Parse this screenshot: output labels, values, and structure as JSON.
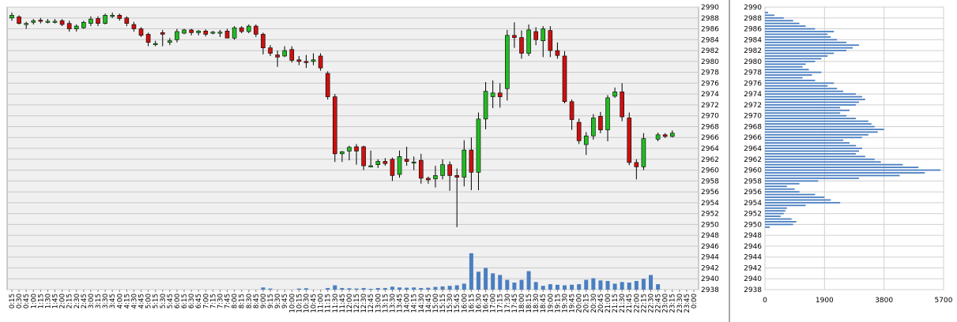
{
  "chart_data": [
    {
      "type": "candlestick",
      "title": "",
      "xlabel": "",
      "ylabel": "",
      "ylim": [
        2938,
        2990
      ],
      "y_ticks": [
        2938,
        2940,
        2942,
        2944,
        2946,
        2948,
        2950,
        2952,
        2954,
        2956,
        2958,
        2960,
        2962,
        2964,
        2966,
        2968,
        2970,
        2972,
        2974,
        2976,
        2978,
        2980,
        2982,
        2984,
        2986,
        2988,
        2990
      ],
      "grid": true,
      "legend": "none",
      "colors": {
        "up": "#22bb22",
        "down": "#cc1111",
        "volume": "#4a7fc1",
        "grid": "#c8c8c8",
        "plot_bg": "#f0f0f0"
      },
      "x_labels": [
        "0:15",
        "0:30",
        "0:45",
        "1:00",
        "1:15",
        "1:30",
        "1:45",
        "2:00",
        "2:15",
        "2:30",
        "2:45",
        "3:00",
        "3:15",
        "3:30",
        "3:45",
        "4:00",
        "4:15",
        "4:30",
        "4:45",
        "5:00",
        "5:15",
        "5:30",
        "5:45",
        "6:00",
        "6:15",
        "6:30",
        "6:45",
        "7:00",
        "7:15",
        "7:30",
        "7:45",
        "8:00",
        "8:15",
        "8:30",
        "8:45",
        "9:00",
        "9:15",
        "9:30",
        "9:45",
        "10:00",
        "10:15",
        "10:30",
        "10:45",
        "11:00",
        "11:15",
        "11:30",
        "11:45",
        "12:00",
        "12:15",
        "12:30",
        "12:45",
        "13:00",
        "13:15",
        "13:30",
        "13:45",
        "14:00",
        "14:15",
        "14:30",
        "14:45",
        "15:00",
        "15:15",
        "15:30",
        "15:45",
        "16:00",
        "16:15",
        "16:30",
        "16:45",
        "17:00",
        "17:15",
        "17:30",
        "17:45",
        "18:00",
        "18:15",
        "18:30",
        "18:45",
        "19:00",
        "19:15",
        "19:30",
        "19:45",
        "20:00",
        "20:15",
        "20:30",
        "20:45",
        "21:00",
        "21:15",
        "21:30",
        "21:45",
        "22:00",
        "22:15",
        "22:30",
        "22:45",
        "23:00",
        "23:15",
        "23:30",
        "23:45",
        "0:00"
      ],
      "candles": [
        {
          "x": "0:15",
          "o": 2988.0,
          "h": 2989.0,
          "l": 2987.5,
          "c": 2988.5
        },
        {
          "x": "0:30",
          "o": 2988.2,
          "h": 2988.5,
          "l": 2986.8,
          "c": 2987.0
        },
        {
          "x": "0:45",
          "o": 2987.0,
          "h": 2987.3,
          "l": 2986.0,
          "c": 2987.0
        },
        {
          "x": "1:00",
          "o": 2987.2,
          "h": 2987.8,
          "l": 2986.8,
          "c": 2987.5
        },
        {
          "x": "1:15",
          "o": 2987.6,
          "h": 2988.0,
          "l": 2987.0,
          "c": 2987.4
        },
        {
          "x": "1:30",
          "o": 2987.4,
          "h": 2987.8,
          "l": 2987.0,
          "c": 2987.4
        },
        {
          "x": "1:45",
          "o": 2987.3,
          "h": 2987.8,
          "l": 2987.0,
          "c": 2987.4
        },
        {
          "x": "2:00",
          "o": 2987.5,
          "h": 2987.8,
          "l": 2986.5,
          "c": 2986.8
        },
        {
          "x": "2:15",
          "o": 2987.0,
          "h": 2987.5,
          "l": 2985.5,
          "c": 2986.0
        },
        {
          "x": "2:30",
          "o": 2986.0,
          "h": 2986.8,
          "l": 2985.5,
          "c": 2986.5
        },
        {
          "x": "2:45",
          "o": 2986.2,
          "h": 2987.5,
          "l": 2986.0,
          "c": 2987.2
        },
        {
          "x": "3:00",
          "o": 2987.0,
          "h": 2988.3,
          "l": 2986.5,
          "c": 2987.8
        },
        {
          "x": "3:15",
          "o": 2987.9,
          "h": 2988.3,
          "l": 2986.5,
          "c": 2987.0
        },
        {
          "x": "3:30",
          "o": 2987.0,
          "h": 2988.8,
          "l": 2986.8,
          "c": 2988.5
        },
        {
          "x": "3:45",
          "o": 2988.5,
          "h": 2989.0,
          "l": 2988.0,
          "c": 2988.5
        },
        {
          "x": "4:00",
          "o": 2988.5,
          "h": 2988.8,
          "l": 2987.5,
          "c": 2987.9
        },
        {
          "x": "4:15",
          "o": 2988.0,
          "h": 2988.3,
          "l": 2986.5,
          "c": 2987.0
        },
        {
          "x": "4:30",
          "o": 2986.8,
          "h": 2987.3,
          "l": 2985.5,
          "c": 2986.0
        },
        {
          "x": "4:45",
          "o": 2986.0,
          "h": 2986.3,
          "l": 2984.5,
          "c": 2984.8
        },
        {
          "x": "5:00",
          "o": 2985.0,
          "h": 2985.3,
          "l": 2982.8,
          "c": 2983.5
        },
        {
          "x": "5:15",
          "o": 2983.3,
          "h": 2983.8,
          "l": 2982.8,
          "c": 2983.3
        },
        {
          "x": "5:30",
          "o": 2985.3,
          "h": 2985.8,
          "l": 2982.8,
          "c": 2985.0
        },
        {
          "x": "5:45",
          "o": 2983.5,
          "h": 2984.3,
          "l": 2983.0,
          "c": 2983.8
        },
        {
          "x": "6:00",
          "o": 2984.0,
          "h": 2986.0,
          "l": 2983.5,
          "c": 2985.5
        },
        {
          "x": "6:15",
          "o": 2985.2,
          "h": 2986.0,
          "l": 2985.0,
          "c": 2985.8
        },
        {
          "x": "6:30",
          "o": 2985.8,
          "h": 2986.0,
          "l": 2984.8,
          "c": 2985.3
        },
        {
          "x": "6:45",
          "o": 2985.3,
          "h": 2985.8,
          "l": 2984.8,
          "c": 2985.6
        },
        {
          "x": "7:00",
          "o": 2985.6,
          "h": 2985.9,
          "l": 2984.6,
          "c": 2985.0
        },
        {
          "x": "7:15",
          "o": 2985.2,
          "h": 2985.6,
          "l": 2985.0,
          "c": 2985.4
        },
        {
          "x": "7:30",
          "o": 2985.3,
          "h": 2985.8,
          "l": 2984.5,
          "c": 2985.4
        },
        {
          "x": "7:45",
          "o": 2985.6,
          "h": 2986.0,
          "l": 2984.5,
          "c": 2984.3
        },
        {
          "x": "8:00",
          "o": 2984.3,
          "h": 2986.5,
          "l": 2984.0,
          "c": 2986.2
        },
        {
          "x": "8:15",
          "o": 2986.2,
          "h": 2986.5,
          "l": 2985.2,
          "c": 2985.5
        },
        {
          "x": "8:30",
          "o": 2985.5,
          "h": 2986.8,
          "l": 2985.2,
          "c": 2986.5
        },
        {
          "x": "8:45",
          "o": 2986.5,
          "h": 2986.8,
          "l": 2984.5,
          "c": 2985.0
        },
        {
          "x": "9:00",
          "o": 2985.0,
          "h": 2985.3,
          "l": 2981.3,
          "c": 2982.5
        },
        {
          "x": "9:15",
          "o": 2982.5,
          "h": 2983.0,
          "l": 2981.0,
          "c": 2981.5
        },
        {
          "x": "9:30",
          "o": 2981.2,
          "h": 2982.0,
          "l": 2979.0,
          "c": 2980.8
        },
        {
          "x": "9:45",
          "o": 2981.0,
          "h": 2982.8,
          "l": 2980.8,
          "c": 2982.0
        },
        {
          "x": "10:00",
          "o": 2982.2,
          "h": 2982.8,
          "l": 2979.8,
          "c": 2980.2
        },
        {
          "x": "10:15",
          "o": 2980.3,
          "h": 2981.0,
          "l": 2979.3,
          "c": 2980.0
        },
        {
          "x": "10:30",
          "o": 2980.0,
          "h": 2981.2,
          "l": 2978.8,
          "c": 2979.8
        },
        {
          "x": "10:45",
          "o": 2980.0,
          "h": 2981.5,
          "l": 2979.3,
          "c": 2980.3
        },
        {
          "x": "11:00",
          "o": 2981.0,
          "h": 2981.5,
          "l": 2978.3,
          "c": 2978.8
        },
        {
          "x": "11:15",
          "o": 2977.8,
          "h": 2978.2,
          "l": 2973.0,
          "c": 2973.5
        },
        {
          "x": "11:30",
          "o": 2973.5,
          "h": 2974.0,
          "l": 2961.5,
          "c": 2963.0
        },
        {
          "x": "11:45",
          "o": 2963.0,
          "h": 2963.5,
          "l": 2961.5,
          "c": 2963.4
        },
        {
          "x": "12:00",
          "o": 2963.5,
          "h": 2964.5,
          "l": 2961.8,
          "c": 2964.2
        },
        {
          "x": "12:15",
          "o": 2964.3,
          "h": 2964.8,
          "l": 2961.0,
          "c": 2963.5
        },
        {
          "x": "12:30",
          "o": 2964.3,
          "h": 2964.5,
          "l": 2960.0,
          "c": 2960.8
        },
        {
          "x": "12:45",
          "o": 2960.8,
          "h": 2963.6,
          "l": 2960.5,
          "c": 2960.8
        },
        {
          "x": "13:00",
          "o": 2961.0,
          "h": 2962.0,
          "l": 2960.4,
          "c": 2961.6
        },
        {
          "x": "13:15",
          "o": 2961.6,
          "h": 2962.2,
          "l": 2960.8,
          "c": 2961.2
        },
        {
          "x": "13:30",
          "o": 2962.0,
          "h": 2962.3,
          "l": 2958.0,
          "c": 2959.0
        },
        {
          "x": "13:45",
          "o": 2959.2,
          "h": 2963.6,
          "l": 2958.6,
          "c": 2962.5
        },
        {
          "x": "14:00",
          "o": 2962.0,
          "h": 2964.3,
          "l": 2960.8,
          "c": 2961.6
        },
        {
          "x": "14:15",
          "o": 2961.5,
          "h": 2962.5,
          "l": 2960.0,
          "c": 2961.5
        },
        {
          "x": "14:30",
          "o": 2961.8,
          "h": 2963.0,
          "l": 2957.5,
          "c": 2958.5
        },
        {
          "x": "14:45",
          "o": 2958.5,
          "h": 2958.8,
          "l": 2957.5,
          "c": 2958.2
        },
        {
          "x": "15:00",
          "o": 2958.4,
          "h": 2960.8,
          "l": 2956.8,
          "c": 2959.0
        },
        {
          "x": "15:15",
          "o": 2959.0,
          "h": 2962.0,
          "l": 2958.3,
          "c": 2961.0
        },
        {
          "x": "15:30",
          "o": 2961.0,
          "h": 2961.6,
          "l": 2956.2,
          "c": 2959.0
        },
        {
          "x": "15:45",
          "o": 2959.0,
          "h": 2960.3,
          "l": 2949.5,
          "c": 2958.7
        },
        {
          "x": "16:00",
          "o": 2958.7,
          "h": 2965.5,
          "l": 2957.0,
          "c": 2963.7
        },
        {
          "x": "16:15",
          "o": 2963.7,
          "h": 2966.0,
          "l": 2956.3,
          "c": 2959.6
        },
        {
          "x": "16:30",
          "o": 2959.6,
          "h": 2970.6,
          "l": 2956.3,
          "c": 2969.4
        },
        {
          "x": "16:45",
          "o": 2969.4,
          "h": 2976.2,
          "l": 2967.5,
          "c": 2974.5
        },
        {
          "x": "17:00",
          "o": 2973.5,
          "h": 2976.5,
          "l": 2971.4,
          "c": 2974.2
        },
        {
          "x": "17:15",
          "o": 2974.2,
          "h": 2976.0,
          "l": 2971.5,
          "c": 2973.5
        },
        {
          "x": "17:30",
          "o": 2975.0,
          "h": 2985.8,
          "l": 2972.8,
          "c": 2984.8
        },
        {
          "x": "17:45",
          "o": 2984.8,
          "h": 2987.2,
          "l": 2982.5,
          "c": 2984.4
        },
        {
          "x": "18:00",
          "o": 2984.4,
          "h": 2985.7,
          "l": 2980.5,
          "c": 2981.5
        },
        {
          "x": "18:15",
          "o": 2981.5,
          "h": 2986.8,
          "l": 2981.0,
          "c": 2985.8
        },
        {
          "x": "18:30",
          "o": 2985.5,
          "h": 2986.3,
          "l": 2983.0,
          "c": 2984.0
        },
        {
          "x": "18:45",
          "o": 2983.8,
          "h": 2986.5,
          "l": 2980.8,
          "c": 2986.0
        },
        {
          "x": "19:00",
          "o": 2985.7,
          "h": 2986.5,
          "l": 2980.8,
          "c": 2982.0
        },
        {
          "x": "19:15",
          "o": 2982.0,
          "h": 2983.5,
          "l": 2980.5,
          "c": 2981.1
        },
        {
          "x": "19:30",
          "o": 2981.0,
          "h": 2981.9,
          "l": 2972.3,
          "c": 2972.6
        },
        {
          "x": "19:45",
          "o": 2972.6,
          "h": 2973.0,
          "l": 2967.4,
          "c": 2969.3
        },
        {
          "x": "20:00",
          "o": 2968.8,
          "h": 2969.5,
          "l": 2964.8,
          "c": 2965.4
        },
        {
          "x": "20:15",
          "o": 2964.7,
          "h": 2967.0,
          "l": 2962.8,
          "c": 2966.3
        },
        {
          "x": "20:30",
          "o": 2966.3,
          "h": 2970.3,
          "l": 2965.6,
          "c": 2969.6
        },
        {
          "x": "20:45",
          "o": 2969.9,
          "h": 2970.7,
          "l": 2966.8,
          "c": 2967.4
        },
        {
          "x": "21:00",
          "o": 2967.4,
          "h": 2973.8,
          "l": 2965.3,
          "c": 2973.3
        },
        {
          "x": "21:15",
          "o": 2973.6,
          "h": 2975.2,
          "l": 2973.3,
          "c": 2974.4
        },
        {
          "x": "21:30",
          "o": 2974.4,
          "h": 2976.0,
          "l": 2969.0,
          "c": 2969.8
        },
        {
          "x": "21:45",
          "o": 2969.6,
          "h": 2970.6,
          "l": 2960.9,
          "c": 2961.4
        },
        {
          "x": "22:00",
          "o": 2961.4,
          "h": 2962.0,
          "l": 2958.3,
          "c": 2960.6
        },
        {
          "x": "22:15",
          "o": 2960.6,
          "h": 2966.8,
          "l": 2960.0,
          "c": 2965.8
        },
        {
          "x": "22:30",
          "o": null,
          "h": null,
          "l": null,
          "c": null
        },
        {
          "x": "22:45",
          "o": 2965.7,
          "h": 2966.9,
          "l": 2965.3,
          "c": 2966.5
        },
        {
          "x": "23:00",
          "o": 2966.5,
          "h": 2966.8,
          "l": 2965.9,
          "c": 2966.2
        },
        {
          "x": "23:15",
          "o": 2966.2,
          "h": 2967.3,
          "l": 2966.0,
          "c": 2966.8
        },
        {
          "x": "23:30",
          "o": null,
          "h": null,
          "l": null,
          "c": null
        },
        {
          "x": "23:45",
          "o": null,
          "h": null,
          "l": null,
          "c": null
        },
        {
          "x": "0:00",
          "o": null,
          "h": null,
          "l": null,
          "c": null
        }
      ],
      "volume_bars": [
        0,
        0,
        0,
        0,
        0,
        0,
        0,
        0,
        0,
        0,
        0,
        0,
        0,
        0,
        0,
        0,
        0,
        0,
        0,
        0,
        0,
        0,
        0,
        0,
        0,
        0,
        0,
        0,
        0,
        0,
        0,
        0,
        0,
        0,
        0,
        0.4,
        0.2,
        0,
        0,
        0,
        0.2,
        0.25,
        0,
        0,
        0.3,
        0.8,
        0.3,
        0.25,
        0.2,
        0.3,
        0.15,
        0.3,
        0.3,
        0.55,
        0.4,
        0.35,
        0.4,
        0.3,
        0.35,
        0.5,
        0.6,
        0.7,
        0.8,
        1.1,
        6.7,
        3.3,
        4.0,
        3.0,
        2.7,
        1.8,
        1.3,
        1.8,
        3.4,
        1.4,
        0.7,
        1.0,
        0.9,
        0.8,
        0.9,
        1.0,
        1.8,
        2.1,
        1.7,
        1.6,
        1.1,
        1.4,
        1.3,
        1.6,
        2.0,
        2.7,
        1.0,
        0,
        0,
        0,
        0,
        0
      ]
    },
    {
      "type": "bar",
      "orientation": "horizontal",
      "title": "",
      "xlabel": "",
      "ylabel": "",
      "xlim": [
        0,
        5700
      ],
      "x_ticks": [
        0,
        1900,
        3800,
        5700
      ],
      "ylim": [
        2938,
        2990
      ],
      "y_ticks": [
        2938,
        2940,
        2942,
        2944,
        2946,
        2948,
        2950,
        2952,
        2954,
        2956,
        2958,
        2960,
        2962,
        2964,
        2966,
        2968,
        2970,
        2972,
        2974,
        2976,
        2978,
        2980,
        2982,
        2984,
        2986,
        2988,
        2990
      ],
      "grid": true,
      "legend": "none",
      "color": "#4a7fc1",
      "price_levels": [
        2949.5,
        2950.0,
        2950.5,
        2951.0,
        2951.5,
        2952.0,
        2952.5,
        2953.0,
        2953.5,
        2954.0,
        2954.5,
        2955.0,
        2955.5,
        2956.0,
        2956.5,
        2957.0,
        2957.5,
        2958.0,
        2958.5,
        2959.0,
        2959.5,
        2960.0,
        2960.5,
        2961.0,
        2961.5,
        2962.0,
        2962.5,
        2963.0,
        2963.5,
        2964.0,
        2964.5,
        2965.0,
        2965.5,
        2966.0,
        2966.5,
        2967.0,
        2967.5,
        2968.0,
        2968.5,
        2969.0,
        2969.5,
        2970.0,
        2970.5,
        2971.0,
        2971.5,
        2972.0,
        2972.5,
        2973.0,
        2973.5,
        2974.0,
        2974.5,
        2975.0,
        2975.5,
        2976.0,
        2976.5,
        2977.0,
        2977.5,
        2978.0,
        2978.5,
        2979.0,
        2979.5,
        2980.0,
        2980.5,
        2981.0,
        2981.5,
        2982.0,
        2982.5,
        2983.0,
        2983.5,
        2984.0,
        2984.5,
        2985.0,
        2985.5,
        2986.0,
        2986.5,
        2987.0,
        2987.5,
        2988.0,
        2988.5,
        2989.0
      ],
      "values": [
        150,
        900,
        1000,
        850,
        500,
        600,
        650,
        700,
        1300,
        2400,
        2100,
        1900,
        1600,
        1100,
        950,
        700,
        1100,
        1700,
        3000,
        4300,
        5100,
        5600,
        4900,
        4400,
        3700,
        3500,
        3200,
        2900,
        3000,
        3100,
        2900,
        2700,
        2500,
        3100,
        3300,
        3600,
        3800,
        3500,
        3400,
        3300,
        2900,
        2600,
        2400,
        2700,
        2400,
        2900,
        3000,
        3200,
        3100,
        2900,
        2500,
        2300,
        2000,
        2200,
        1600,
        1200,
        1500,
        1800,
        1400,
        1200,
        1300,
        1600,
        1800,
        2000,
        2200,
        2600,
        2800,
        3000,
        2600,
        2300,
        2100,
        2000,
        2200,
        1600,
        1300,
        1100,
        900,
        600,
        300,
        100
      ]
    }
  ]
}
